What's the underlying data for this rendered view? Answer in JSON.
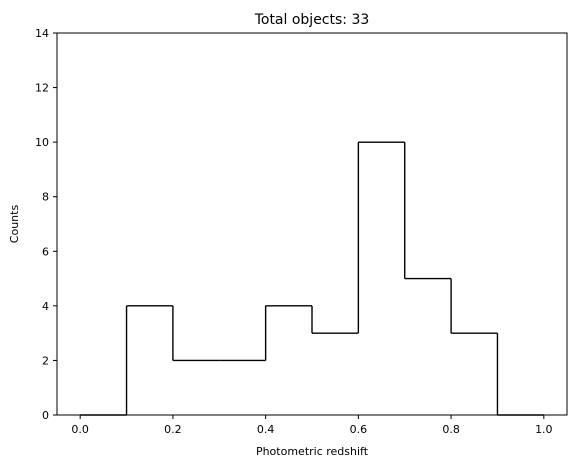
{
  "chart_data": {
    "type": "histogram",
    "title": "Total objects: 33",
    "xlabel": "Photometric redshift",
    "ylabel": "Counts",
    "xlim": [
      -0.05,
      1.05
    ],
    "ylim": [
      0,
      14
    ],
    "xticks": [
      "0.0",
      "0.2",
      "0.4",
      "0.6",
      "0.8",
      "1.0"
    ],
    "yticks": [
      "0",
      "2",
      "4",
      "6",
      "8",
      "10",
      "12",
      "14"
    ],
    "bin_edges": [
      0.0,
      0.1,
      0.2,
      0.3,
      0.4,
      0.5,
      0.6,
      0.7,
      0.8,
      0.9,
      1.0
    ],
    "counts": [
      0,
      4,
      2,
      2,
      4,
      3,
      10,
      5,
      3,
      0
    ],
    "histtype": "step",
    "line_color": "#000000",
    "grid": false
  }
}
